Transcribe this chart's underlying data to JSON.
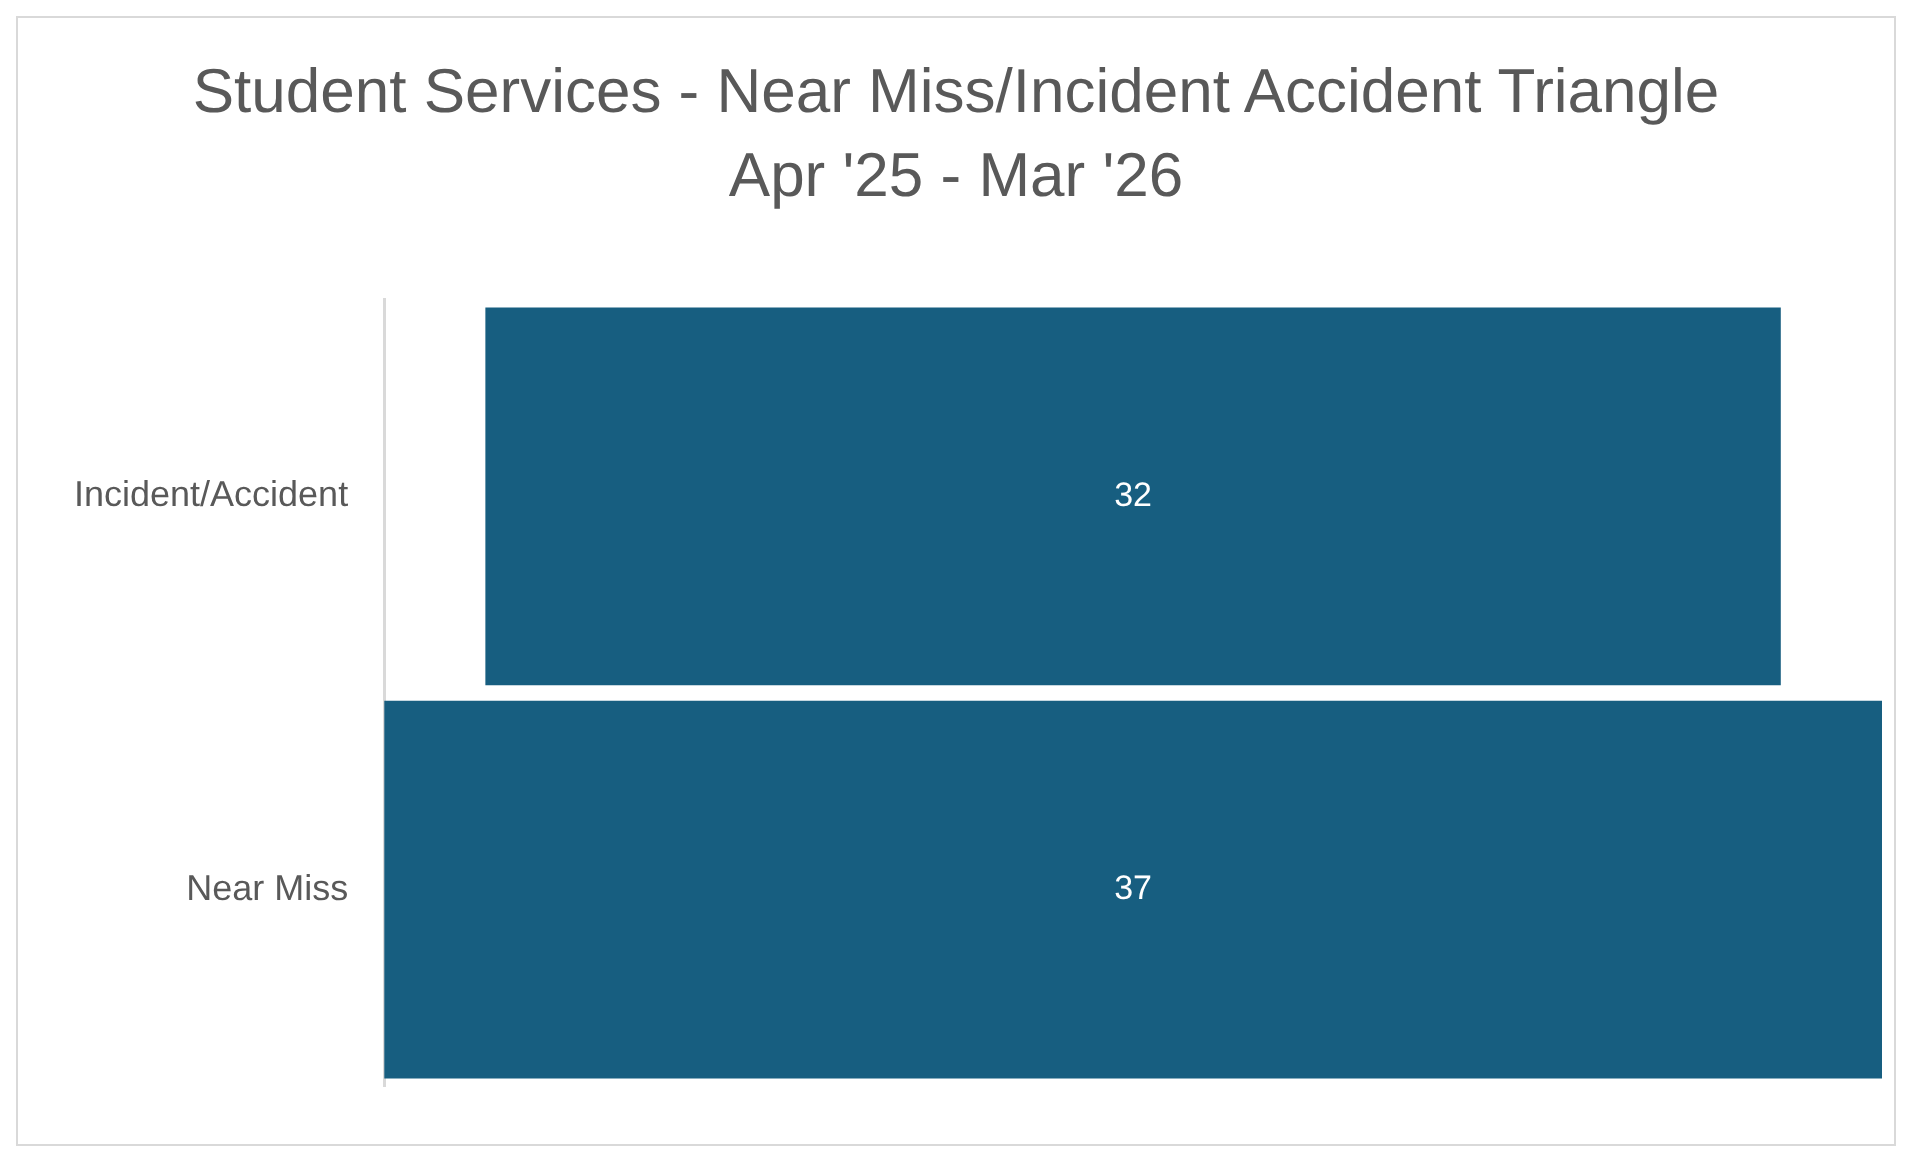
{
  "chart_data": {
    "type": "other",
    "title": "Student Services - Near Miss/Incident Accident Triangle Apr '25 - Mar '26",
    "categories": [
      "Incident/Accident",
      "Near Miss"
    ],
    "values": [
      32,
      37
    ],
    "color": "#175e80",
    "data_labels": true,
    "legend": false
  }
}
